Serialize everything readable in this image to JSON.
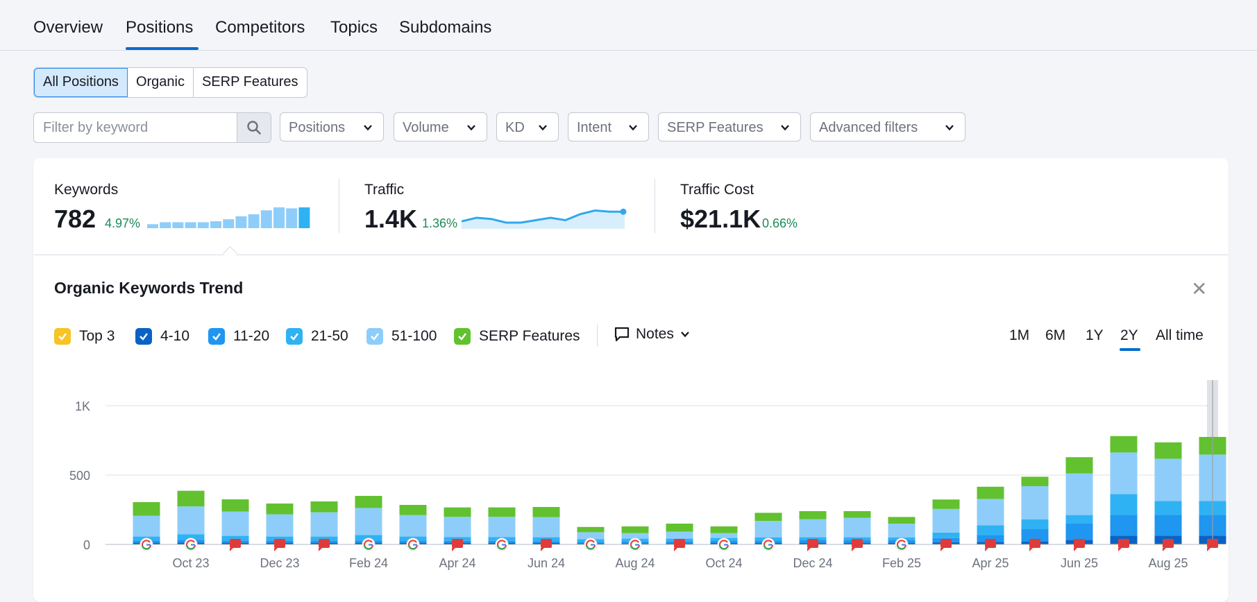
{
  "tabs": {
    "overview": "Overview",
    "positions": "Positions",
    "competitors": "Competitors",
    "topics": "Topics",
    "subdomains": "Subdomains"
  },
  "segments": {
    "all": "All Positions",
    "organic": "Organic",
    "serp": "SERP Features"
  },
  "filters": {
    "search_placeholder": "Filter by keyword",
    "positions": "Positions",
    "volume": "Volume",
    "kd": "KD",
    "intent": "Intent",
    "serp_features": "SERP Features",
    "advanced": "Advanced filters"
  },
  "metrics": {
    "keywords": {
      "label": "Keywords",
      "value": "782",
      "delta": "4.97%"
    },
    "traffic": {
      "label": "Traffic",
      "value": "1.4K",
      "delta": "1.36%"
    },
    "cost": {
      "label": "Traffic Cost",
      "value": "$21.1K",
      "delta": "0.66%"
    }
  },
  "sparkline_keywords": [
    4,
    6,
    6,
    6,
    6,
    7,
    9,
    12,
    14,
    18,
    21,
    20,
    21
  ],
  "sparkline_traffic": [
    1.35,
    1.38,
    1.37,
    1.34,
    1.34,
    1.36,
    1.38,
    1.36,
    1.41,
    1.44,
    1.43,
    1.43
  ],
  "trend": {
    "title": "Organic Keywords Trend",
    "notes_label": "Notes",
    "legend": {
      "top3": "Top 3",
      "r4_10": "4-10",
      "r11_20": "11-20",
      "r21_50": "21-50",
      "r51_100": "51-100",
      "serp": "SERP Features"
    },
    "ranges": {
      "m1": "1M",
      "m6": "6M",
      "y1": "1Y",
      "y2": "2Y",
      "all": "All time"
    }
  },
  "colors": {
    "top3": "#f7c325",
    "r4_10": "#0a63c4",
    "r11_20": "#1f96f0",
    "r21_50": "#2fb2f4",
    "r51_100": "#8ecdf9",
    "serp": "#62c12f",
    "accent": "#006dca"
  },
  "chart_data": {
    "type": "bar",
    "stacked": true,
    "categories": [
      "Sep 23",
      "Oct 23",
      "Nov 23",
      "Dec 23",
      "Jan 24",
      "Feb 24",
      "Mar 24",
      "Apr 24",
      "May 24",
      "Jun 24",
      "Jul 24",
      "Aug 24",
      "Sep 24",
      "Oct 24",
      "Nov 24",
      "Dec 24",
      "Jan 25",
      "Feb 25",
      "Mar 25",
      "Apr 25",
      "May 25",
      "Jun 25",
      "Jul 25",
      "Aug 25",
      "Sep 25"
    ],
    "x_tick_labels": [
      "Oct 23",
      "Dec 23",
      "Feb 24",
      "Apr 24",
      "Jun 24",
      "Aug 24",
      "Oct 24",
      "Dec 24",
      "Feb 25",
      "Apr 25",
      "Jun 25",
      "Aug 25"
    ],
    "series": [
      {
        "name": "Top 3",
        "values": [
          2,
          2,
          2,
          2,
          2,
          2,
          2,
          2,
          2,
          2,
          2,
          2,
          2,
          2,
          2,
          2,
          2,
          2,
          2,
          2,
          2,
          2,
          3,
          3,
          3
        ]
      },
      {
        "name": "4-10",
        "values": [
          10,
          12,
          10,
          10,
          10,
          10,
          10,
          10,
          10,
          8,
          6,
          6,
          6,
          8,
          8,
          10,
          10,
          10,
          14,
          16,
          18,
          30,
          60,
          60,
          60
        ]
      },
      {
        "name": "11-20",
        "values": [
          15,
          20,
          15,
          15,
          15,
          16,
          15,
          14,
          14,
          14,
          10,
          12,
          12,
          15,
          18,
          18,
          18,
          18,
          30,
          50,
          90,
          120,
          150,
          150,
          150
        ]
      },
      {
        "name": "21-50",
        "values": [
          30,
          40,
          35,
          30,
          30,
          40,
          30,
          28,
          28,
          28,
          20,
          22,
          22,
          22,
          22,
          22,
          22,
          20,
          40,
          70,
          70,
          60,
          150,
          100,
          100
        ]
      },
      {
        "name": "51-100",
        "values": [
          150,
          200,
          175,
          160,
          175,
          195,
          155,
          145,
          145,
          145,
          50,
          40,
          50,
          35,
          120,
          130,
          140,
          100,
          170,
          190,
          240,
          300,
          300,
          305,
          335
        ]
      },
      {
        "name": "SERP Features",
        "values": [
          98,
          113,
          88,
          78,
          78,
          87,
          73,
          68,
          68,
          73,
          38,
          48,
          58,
          48,
          58,
          58,
          48,
          48,
          68,
          88,
          68,
          117,
          118,
          118,
          127
        ]
      }
    ],
    "xlabel": "",
    "ylabel": "",
    "y_ticks": [
      "0",
      "500",
      "1K"
    ],
    "ylim": [
      0,
      1000
    ],
    "grid": true,
    "markers": [
      "google",
      "google",
      "flag",
      "flag",
      "flag",
      "google",
      "google",
      "flag",
      "google",
      "flag",
      "google",
      "google",
      "flag",
      "google",
      "google",
      "flag",
      "flag",
      "google",
      "flag",
      "flag",
      "flag",
      "flag",
      "flag",
      "flag",
      "flag"
    ]
  }
}
